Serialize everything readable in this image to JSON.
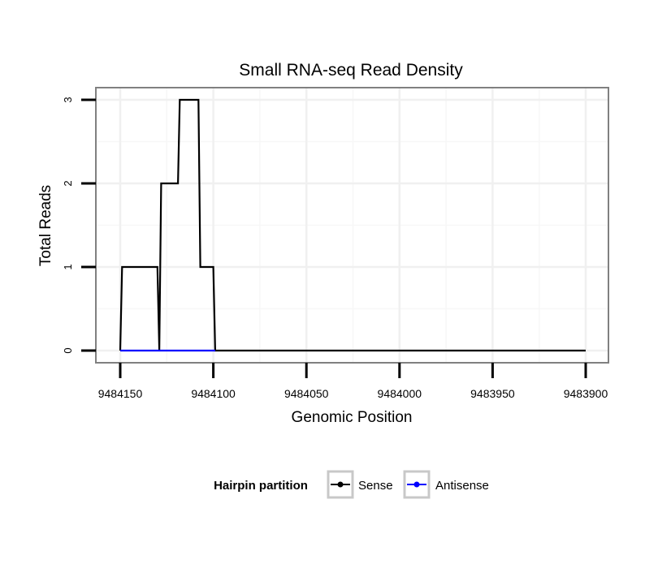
{
  "chart_data": {
    "type": "line",
    "title": "Small RNA-seq Read Density",
    "xlabel": "Genomic Position",
    "ylabel": "Total Reads",
    "xlim": [
      9484150,
      9483900
    ],
    "x_reversed": true,
    "ylim": [
      0,
      3
    ],
    "x_ticks": [
      9484150,
      9484100,
      9484050,
      9484000,
      9483950,
      9483900
    ],
    "x_tick_labels": [
      "9484150",
      "9484100",
      "9484050",
      "9484000",
      "9483950",
      "9483900"
    ],
    "y_ticks": [
      0,
      1,
      2,
      3
    ],
    "y_tick_labels": [
      "0",
      "1",
      "2",
      "3"
    ],
    "grid": true,
    "legend": {
      "title": "Hairpin partition",
      "position": "bottom"
    },
    "series": [
      {
        "name": "Sense",
        "color": "#000000",
        "x": [
          9484150,
          9484149,
          9484130,
          9484129,
          9484128,
          9484119,
          9484118,
          9484108,
          9484107,
          9484100,
          9484099,
          9483900
        ],
        "y": [
          0,
          1,
          1,
          0,
          2,
          2,
          3,
          3,
          1,
          1,
          0,
          0
        ]
      },
      {
        "name": "Antisense",
        "color": "#0000ff",
        "x": [
          9484150,
          9484099
        ],
        "y": [
          0,
          0
        ]
      }
    ]
  }
}
